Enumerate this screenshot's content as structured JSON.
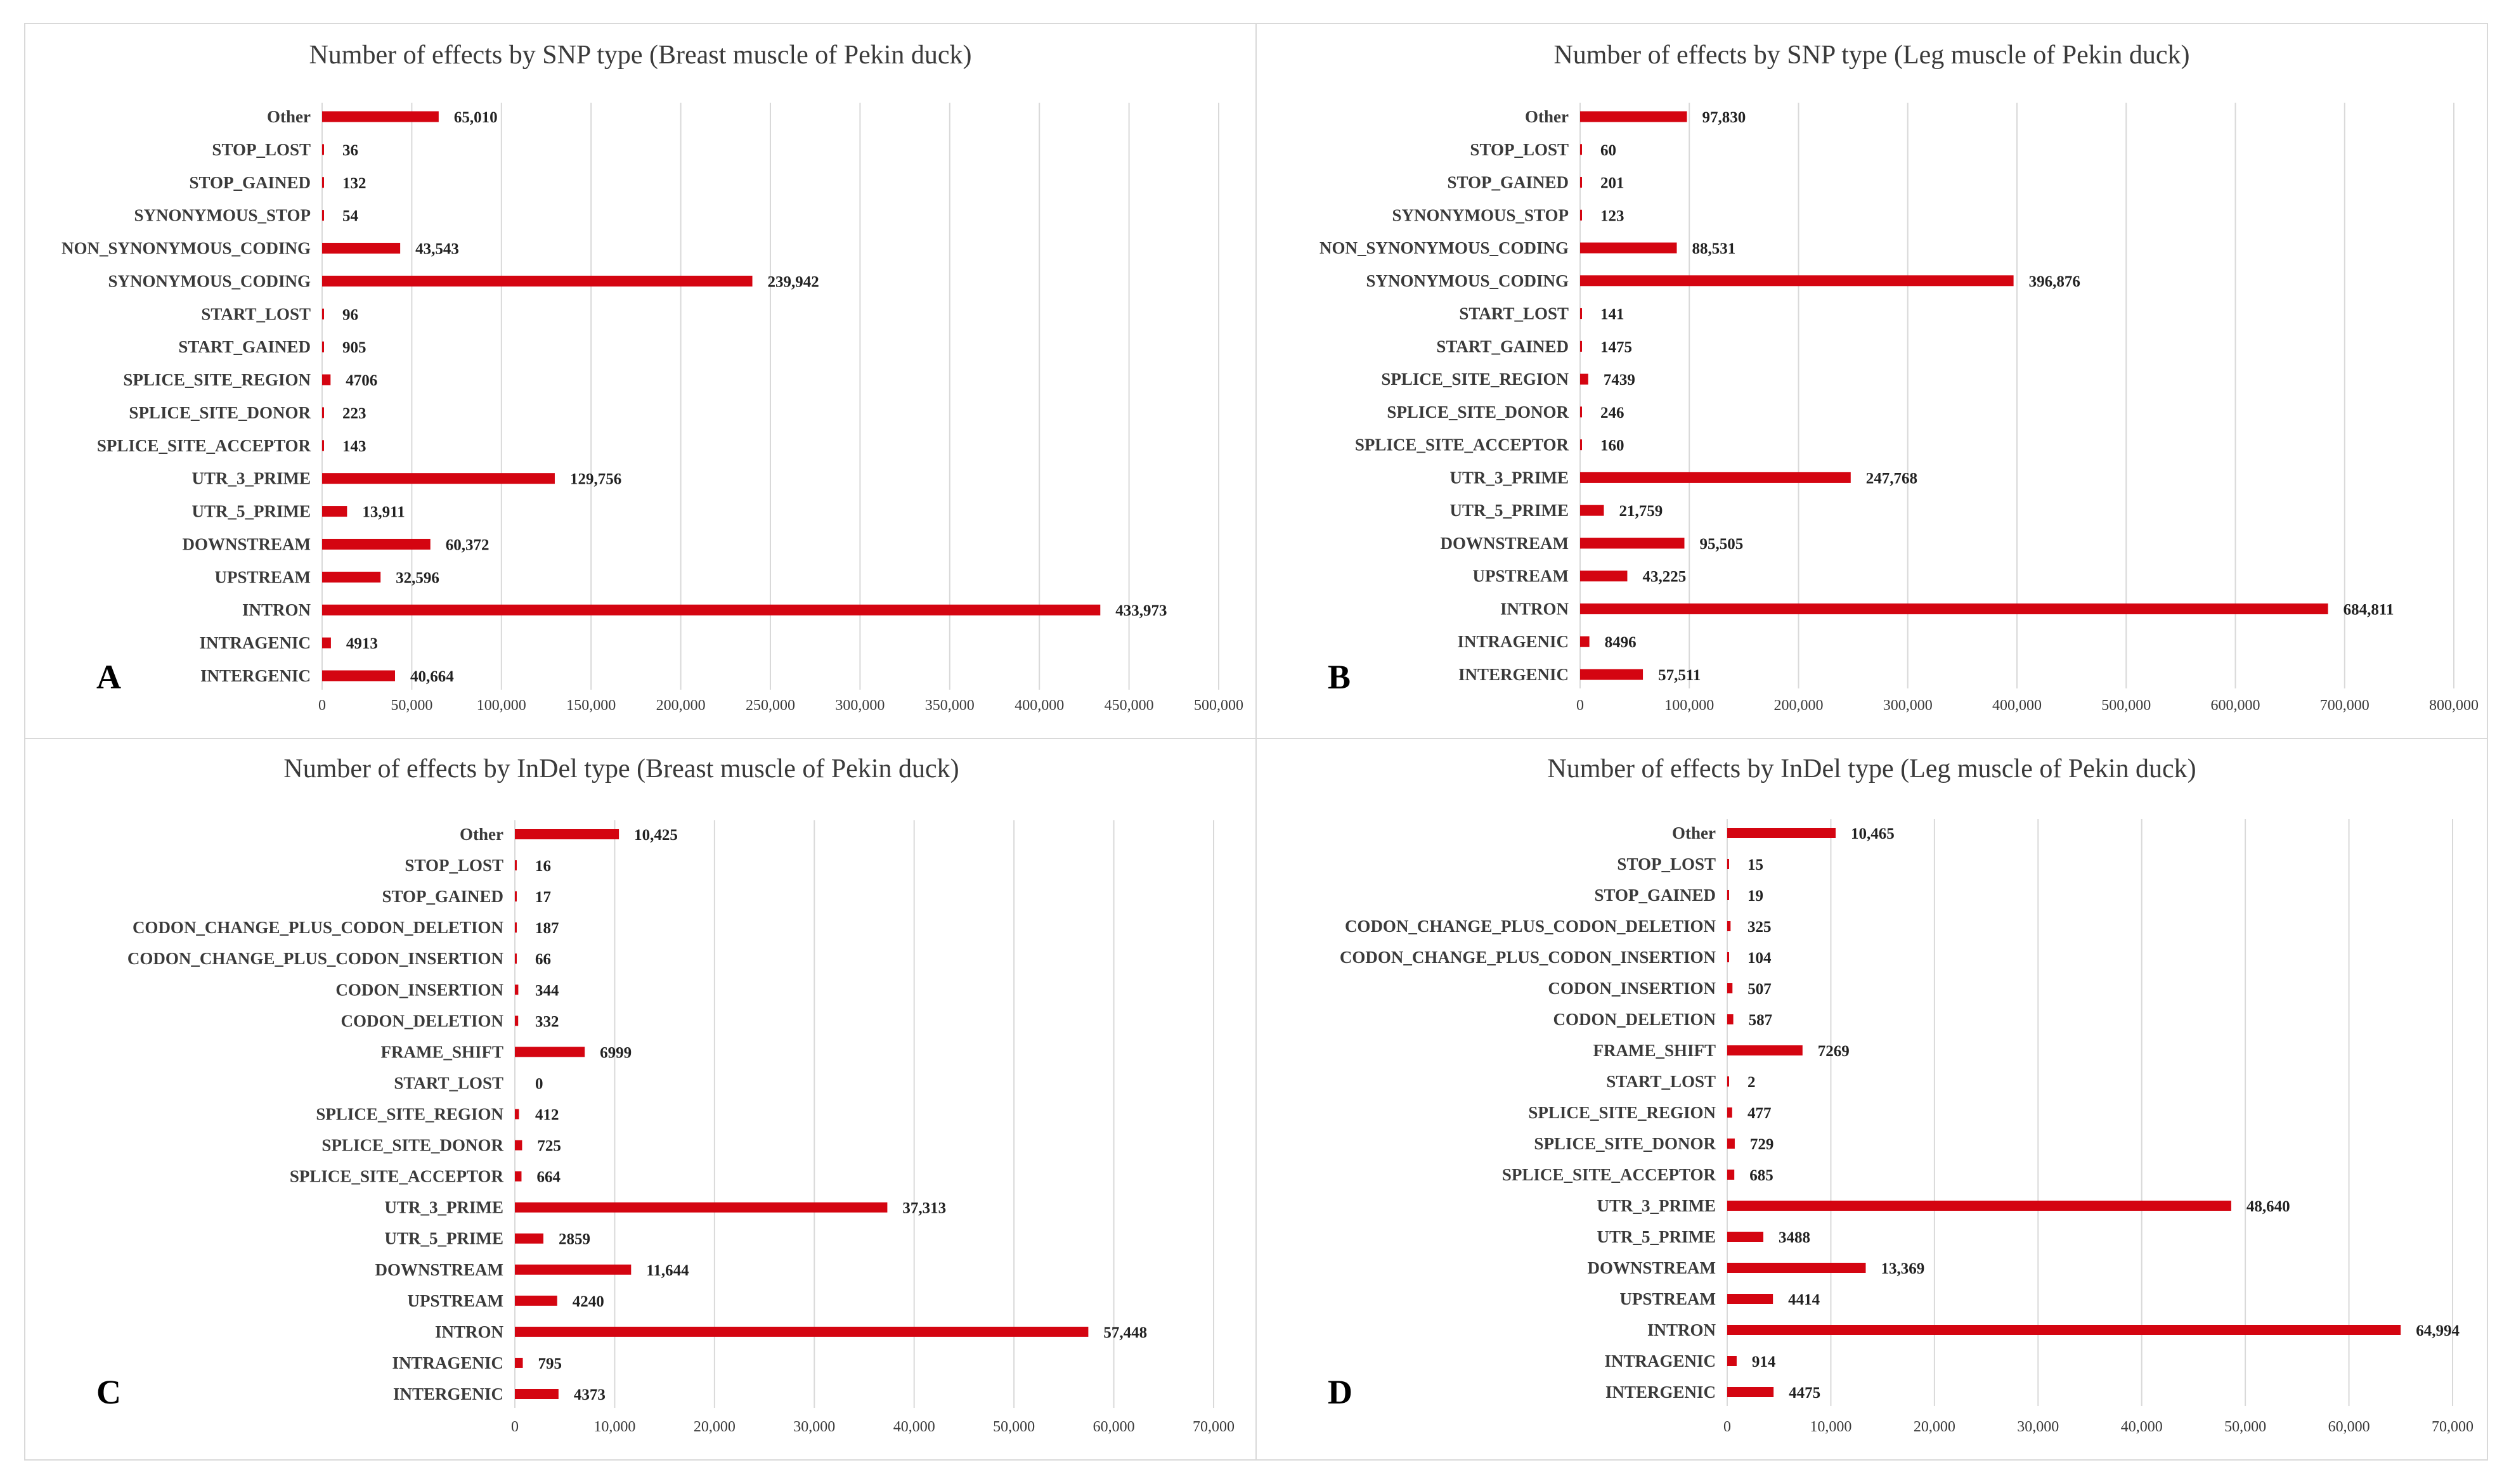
{
  "colors": {
    "bar": "#d40511",
    "grid": "#d9d9d9",
    "text": "#3a3a3a"
  },
  "chart_data": [
    {
      "panel": "A",
      "type": "bar",
      "orientation": "horizontal",
      "title": "Number of effects by SNP type (Breast muscle of Pekin duck)",
      "categories": [
        "Other",
        "STOP_LOST",
        "STOP_GAINED",
        "SYNONYMOUS_STOP",
        "NON_SYNONYMOUS_CODING",
        "SYNONYMOUS_CODING",
        "START_LOST",
        "START_GAINED",
        "SPLICE_SITE_REGION",
        "SPLICE_SITE_DONOR",
        "SPLICE_SITE_ACCEPTOR",
        "UTR_3_PRIME",
        "UTR_5_PRIME",
        "DOWNSTREAM",
        "UPSTREAM",
        "INTRON",
        "INTRAGENIC",
        "INTERGENIC"
      ],
      "values": [
        65010,
        36,
        132,
        54,
        43543,
        239942,
        96,
        905,
        4706,
        223,
        143,
        129756,
        13911,
        60372,
        32596,
        433973,
        4913,
        40664
      ],
      "value_labels": [
        "65,010",
        "36",
        "132",
        "54",
        "43,543",
        "239,942",
        "96",
        "905",
        "4706",
        "223",
        "143",
        "129,756",
        "13,911",
        "60,372",
        "32,596",
        "433,973",
        "4913",
        "40,664"
      ],
      "xlim": [
        0,
        500000
      ],
      "xticks": [
        0,
        50000,
        100000,
        150000,
        200000,
        250000,
        300000,
        350000,
        400000,
        450000,
        500000
      ],
      "xtick_labels": [
        "0",
        "50,000",
        "100,000",
        "150,000",
        "200,000",
        "250,000",
        "300,000",
        "350,000",
        "400,000",
        "450,000",
        "500,000"
      ],
      "grid": true,
      "xlabel": "",
      "ylabel": ""
    },
    {
      "panel": "B",
      "type": "bar",
      "orientation": "horizontal",
      "title": "Number of effects by SNP type (Leg muscle of Pekin duck)",
      "categories": [
        "Other",
        "STOP_LOST",
        "STOP_GAINED",
        "SYNONYMOUS_STOP",
        "NON_SYNONYMOUS_CODING",
        "SYNONYMOUS_CODING",
        "START_LOST",
        "START_GAINED",
        "SPLICE_SITE_REGION",
        "SPLICE_SITE_DONOR",
        "SPLICE_SITE_ACCEPTOR",
        "UTR_3_PRIME",
        "UTR_5_PRIME",
        "DOWNSTREAM",
        "UPSTREAM",
        "INTRON",
        "INTRAGENIC",
        "INTERGENIC"
      ],
      "values": [
        97830,
        60,
        201,
        123,
        88531,
        396876,
        141,
        1475,
        7439,
        246,
        160,
        247768,
        21759,
        95505,
        43225,
        684811,
        8496,
        57511
      ],
      "value_labels": [
        "97,830",
        "60",
        "201",
        "123",
        "88,531",
        "396,876",
        "141",
        "1475",
        "7439",
        "246",
        "160",
        "247,768",
        "21,759",
        "95,505",
        "43,225",
        "684,811",
        "8496",
        "57,511"
      ],
      "xlim": [
        0,
        800000
      ],
      "xticks": [
        0,
        100000,
        200000,
        300000,
        400000,
        500000,
        600000,
        700000,
        800000
      ],
      "xtick_labels": [
        "0",
        "100,000",
        "200,000",
        "300,000",
        "400,000",
        "500,000",
        "600,000",
        "700,000",
        "800,000"
      ],
      "grid": true,
      "xlabel": "",
      "ylabel": ""
    },
    {
      "panel": "C",
      "type": "bar",
      "orientation": "horizontal",
      "title": "Number of effects by InDel type (Breast muscle of Pekin duck)",
      "categories": [
        "Other",
        "STOP_LOST",
        "STOP_GAINED",
        "CODON_CHANGE_PLUS_CODON_DELETION",
        "CODON_CHANGE_PLUS_CODON_INSERTION",
        "CODON_INSERTION",
        "CODON_DELETION",
        "FRAME_SHIFT",
        "START_LOST",
        "SPLICE_SITE_REGION",
        "SPLICE_SITE_DONOR",
        "SPLICE_SITE_ACCEPTOR",
        "UTR_3_PRIME",
        "UTR_5_PRIME",
        "DOWNSTREAM",
        "UPSTREAM",
        "INTRON",
        "INTRAGENIC",
        "INTERGENIC"
      ],
      "values": [
        10425,
        16,
        17,
        187,
        66,
        344,
        332,
        6999,
        0,
        412,
        725,
        664,
        37313,
        2859,
        11644,
        4240,
        57448,
        795,
        4373
      ],
      "value_labels": [
        "10,425",
        "16",
        "17",
        "187",
        "66",
        "344",
        "332",
        "6999",
        "0",
        "412",
        "725",
        "664",
        "37,313",
        "2859",
        "11,644",
        "4240",
        "57,448",
        "795",
        "4373"
      ],
      "xlim": [
        0,
        70000
      ],
      "xticks": [
        0,
        10000,
        20000,
        30000,
        40000,
        50000,
        60000,
        70000
      ],
      "xtick_labels": [
        "0",
        "10,000",
        "20,000",
        "30,000",
        "40,000",
        "50,000",
        "60,000",
        "70,000"
      ],
      "grid": true,
      "xlabel": "",
      "ylabel": ""
    },
    {
      "panel": "D",
      "type": "bar",
      "orientation": "horizontal",
      "title": "Number of effects by InDel type (Leg muscle of Pekin duck)",
      "categories": [
        "Other",
        "STOP_LOST",
        "STOP_GAINED",
        "CODON_CHANGE_PLUS_CODON_DELETION",
        "CODON_CHANGE_PLUS_CODON_INSERTION",
        "CODON_INSERTION",
        "CODON_DELETION",
        "FRAME_SHIFT",
        "START_LOST",
        "SPLICE_SITE_REGION",
        "SPLICE_SITE_DONOR",
        "SPLICE_SITE_ACCEPTOR",
        "UTR_3_PRIME",
        "UTR_5_PRIME",
        "DOWNSTREAM",
        "UPSTREAM",
        "INTRON",
        "INTRAGENIC",
        "INTERGENIC"
      ],
      "values": [
        10465,
        15,
        19,
        325,
        104,
        507,
        587,
        7269,
        2,
        477,
        729,
        685,
        48640,
        3488,
        13369,
        4414,
        64994,
        914,
        4475
      ],
      "value_labels": [
        "10,465",
        "15",
        "19",
        "325",
        "104",
        "507",
        "587",
        "7269",
        "2",
        "477",
        "729",
        "685",
        "48,640",
        "3488",
        "13,369",
        "4414",
        "64,994",
        "914",
        "4475"
      ],
      "xlim": [
        0,
        70000
      ],
      "xticks": [
        0,
        10000,
        20000,
        30000,
        40000,
        50000,
        60000,
        70000
      ],
      "xtick_labels": [
        "0",
        "10,000",
        "20,000",
        "30,000",
        "40,000",
        "50,000",
        "60,000",
        "70,000"
      ],
      "grid": true,
      "xlabel": "",
      "ylabel": ""
    }
  ]
}
